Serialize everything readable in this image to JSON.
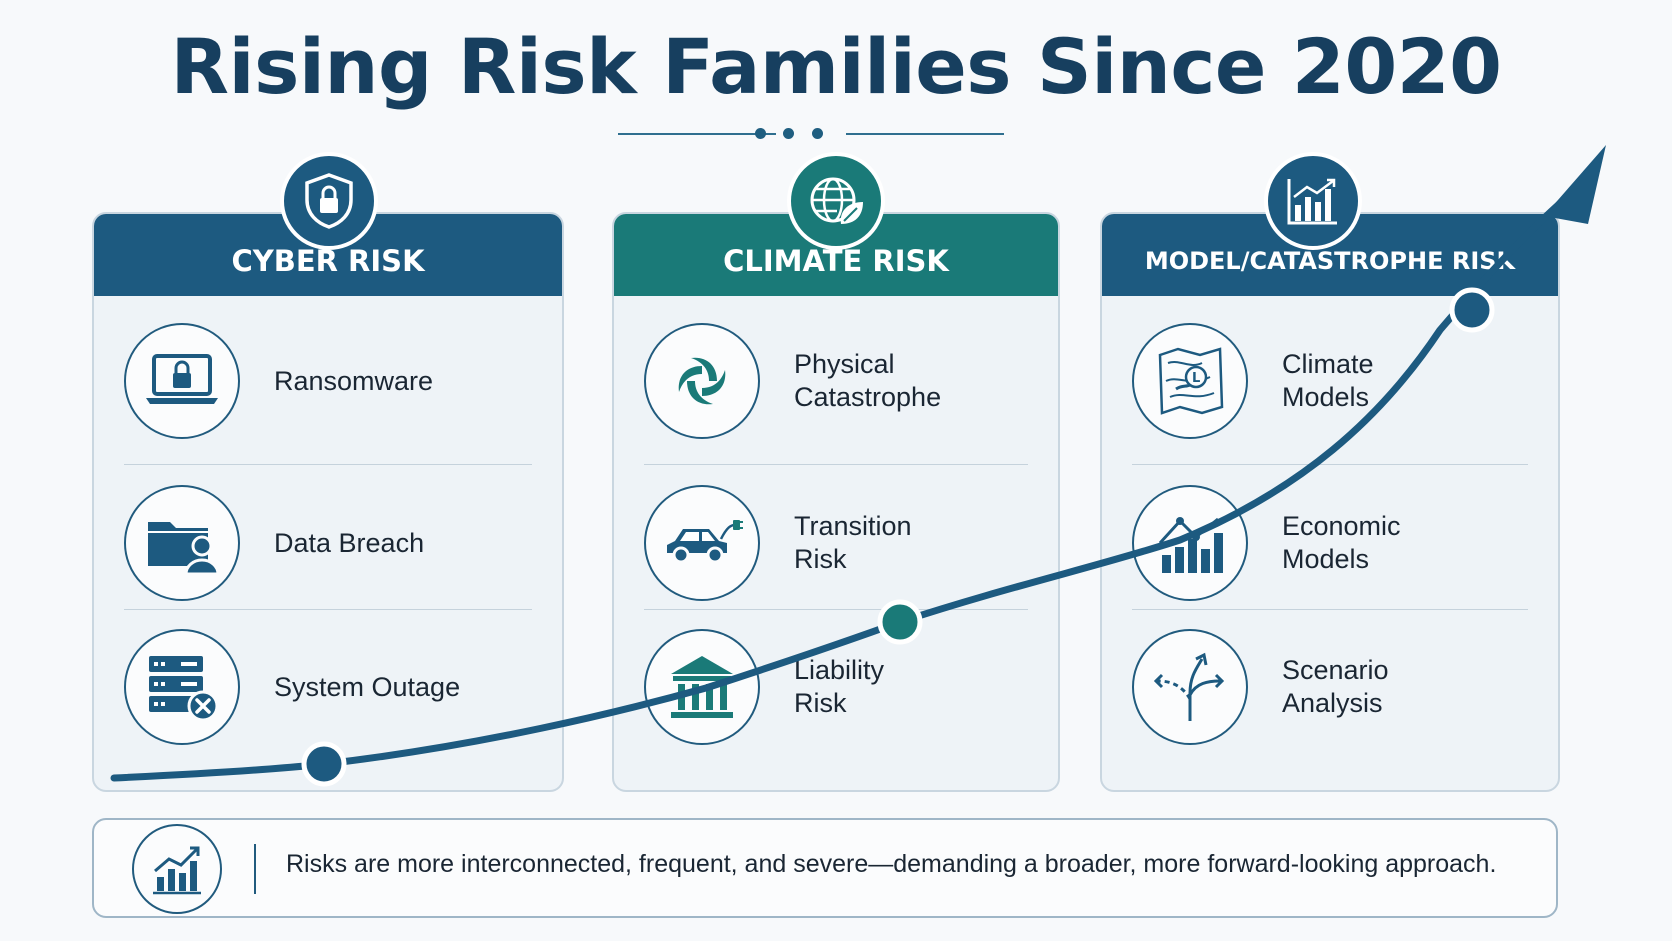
{
  "title": "Rising Risk Families Since 2020",
  "colors": {
    "navy": "#1d5a80",
    "teal": "#1a7a78",
    "title": "#173f5f"
  },
  "columns": [
    {
      "heading": "CYBER RISK",
      "badge_icon": "shield-lock-icon",
      "items": [
        {
          "label": "Ransomware",
          "icon": "laptop-lock-icon"
        },
        {
          "label": "Data Breach",
          "icon": "folder-user-icon"
        },
        {
          "label": "System Outage",
          "icon": "server-error-icon"
        }
      ]
    },
    {
      "heading": "CLIMATE RISK",
      "badge_icon": "globe-leaf-icon",
      "items": [
        {
          "label": "Physical\nCatastrophe",
          "icon": "hurricane-icon"
        },
        {
          "label": "Transition\nRisk",
          "icon": "electric-car-icon"
        },
        {
          "label": "Liability\nRisk",
          "icon": "courthouse-icon"
        }
      ]
    },
    {
      "heading": "MODEL/CATASTROPHE RISK",
      "badge_icon": "bar-chart-icon",
      "items": [
        {
          "label": "Climate\nModels",
          "icon": "weather-map-icon"
        },
        {
          "label": "Economic\nModels",
          "icon": "economic-chart-icon"
        },
        {
          "label": "Scenario\nAnalysis",
          "icon": "branching-arrows-icon"
        }
      ]
    }
  ],
  "footer": {
    "text": "Risks are more interconnected, frequent, and severe—demanding a broader, more forward-looking approach.",
    "icon": "trend-up-chart-icon"
  }
}
